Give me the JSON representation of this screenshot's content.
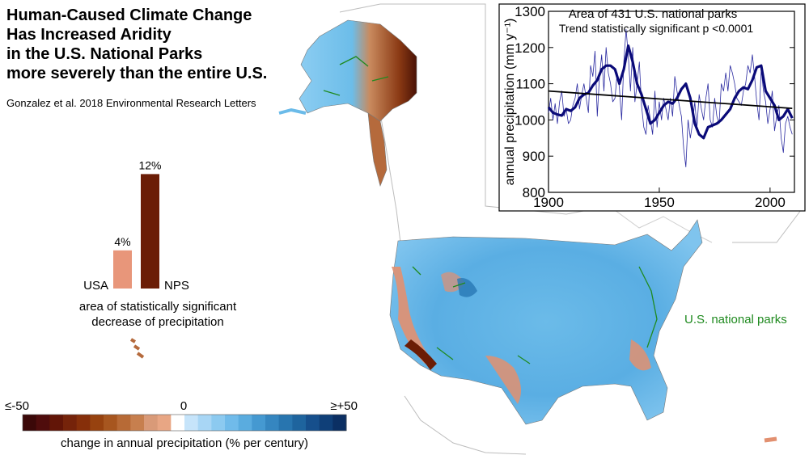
{
  "title_lines": [
    "Human-Caused Climate Change",
    "Has Increased Aridity",
    "in the U.S. National Parks",
    "more severely than the entire U.S."
  ],
  "citation": "Gonzalez et al. 2018 Environmental Research Letters",
  "map_legend_label": "U.S. national parks",
  "colors": {
    "nps_outline": "#1f8a1f",
    "usa_bar": "#e8967a",
    "nps_bar": "#6b1d06",
    "series_thick": "#0a0a78",
    "series_thin": "#2a2aa0",
    "trend": "#000000"
  },
  "bar_chart": {
    "type": "bar",
    "categories": [
      "USA",
      "NPS"
    ],
    "values": [
      4,
      12
    ],
    "value_labels": [
      "4%",
      "12%"
    ],
    "caption_lines": [
      "area of statistically significant",
      "decrease of precipitation"
    ]
  },
  "colorbar": {
    "min_label": "≤-50",
    "mid_label": "0",
    "max_label": "≥+50",
    "caption": "change in annual precipitation (% per century)",
    "colors": [
      "#3b0808",
      "#4f0c0c",
      "#621507",
      "#75230a",
      "#862f0a",
      "#97420f",
      "#a7561f",
      "#b76a36",
      "#c77f4e",
      "#d99a78",
      "#e8a684",
      "#ffffff",
      "#c6e4fa",
      "#a8d6f5",
      "#8ccaf0",
      "#70bbea",
      "#5aacdf",
      "#4599d1",
      "#3586c0",
      "#2875af",
      "#1e649e",
      "#164f8c",
      "#0f3f78",
      "#0b2f63"
    ]
  },
  "chart_data": {
    "type": "line",
    "title": "Area of 431 U.S. national parks",
    "subtitle": "Trend statistically significant p <0.0001",
    "xlabel": "",
    "ylabel": "annual precipitation (mm y⁻¹)",
    "xlim": [
      1900,
      2011
    ],
    "ylim": [
      800,
      1300
    ],
    "xticks": [
      1900,
      1950,
      2000
    ],
    "yticks": [
      800,
      900,
      1000,
      1100,
      1200,
      1300
    ],
    "series": [
      {
        "style": "thin",
        "x": [
          1900,
          1901,
          1902,
          1903,
          1904,
          1905,
          1906,
          1907,
          1908,
          1909,
          1910,
          1911,
          1912,
          1913,
          1914,
          1915,
          1916,
          1917,
          1918,
          1919,
          1920,
          1921,
          1922,
          1923,
          1924,
          1925,
          1926,
          1927,
          1928,
          1929,
          1930,
          1931,
          1932,
          1933,
          1934,
          1935,
          1936,
          1937,
          1938,
          1939,
          1940,
          1941,
          1942,
          1943,
          1944,
          1945,
          1946,
          1947,
          1948,
          1949,
          1950,
          1951,
          1952,
          1953,
          1954,
          1955,
          1956,
          1957,
          1958,
          1959,
          1960,
          1961,
          1962,
          1963,
          1964,
          1965,
          1966,
          1967,
          1968,
          1969,
          1970,
          1971,
          1972,
          1973,
          1974,
          1975,
          1976,
          1977,
          1978,
          1979,
          1980,
          1981,
          1982,
          1983,
          1984,
          1985,
          1986,
          1987,
          1988,
          1989,
          1990,
          1991,
          1992,
          1993,
          1994,
          1995,
          1996,
          1997,
          1998,
          1999,
          2000,
          2001,
          2002,
          2003,
          2004,
          2005,
          2006,
          2007,
          2008,
          2009,
          2010
        ],
        "y": [
          1020,
          1060,
          1000,
          1045,
          990,
          1050,
          1080,
          1010,
          1030,
          990,
          1000,
          1040,
          1060,
          1100,
          1030,
          1070,
          1100,
          1060,
          1020,
          1150,
          1120,
          1190,
          1010,
          1120,
          1180,
          1080,
          1200,
          1130,
          1100,
          1050,
          1060,
          1130,
          1090,
          1000,
          1160,
          1250,
          1180,
          1080,
          1200,
          1050,
          1100,
          1160,
          1040,
          980,
          960,
          1040,
          1000,
          960,
          1080,
          980,
          1050,
          1000,
          1060,
          1030,
          1000,
          1060,
          1010,
          1120,
          1080,
          1040,
          1010,
          920,
          870,
          1000,
          950,
          990,
          1050,
          980,
          1070,
          1030,
          1000,
          1060,
          1100,
          1000,
          980,
          1060,
          1010,
          990,
          1100,
          1080,
          1130,
          1080,
          1150,
          1130,
          1100,
          1060,
          1050,
          1040,
          1080,
          1100,
          1150,
          1130,
          1180,
          1120,
          1050,
          1000,
          1140,
          1080,
          1050,
          990,
          1030,
          1080,
          970,
          1010,
          1040,
          950,
          910,
          990,
          1010,
          980,
          960
        ]
      },
      {
        "style": "thick",
        "x": [
          1900,
          1902,
          1904,
          1906,
          1908,
          1910,
          1912,
          1914,
          1916,
          1918,
          1920,
          1922,
          1924,
          1926,
          1928,
          1930,
          1932,
          1934,
          1936,
          1938,
          1940,
          1942,
          1944,
          1946,
          1948,
          1950,
          1952,
          1954,
          1956,
          1958,
          1960,
          1962,
          1964,
          1966,
          1968,
          1970,
          1972,
          1974,
          1976,
          1978,
          1980,
          1982,
          1984,
          1986,
          1988,
          1990,
          1992,
          1994,
          1996,
          1998,
          2000,
          2002,
          2004,
          2006,
          2008,
          2010
        ],
        "y": [
          1035,
          1020,
          1015,
          1012,
          1030,
          1025,
          1035,
          1060,
          1070,
          1075,
          1095,
          1110,
          1140,
          1150,
          1150,
          1140,
          1100,
          1140,
          1205,
          1160,
          1100,
          1070,
          1030,
          990,
          1000,
          1020,
          1040,
          1050,
          1045,
          1060,
          1085,
          1100,
          1060,
          990,
          960,
          950,
          980,
          985,
          990,
          1000,
          1015,
          1030,
          1060,
          1080,
          1090,
          1085,
          1110,
          1145,
          1150,
          1080,
          1060,
          1040,
          1000,
          1010,
          1030,
          1005
        ]
      },
      {
        "style": "trend",
        "x": [
          1900,
          2010
        ],
        "y": [
          1080,
          1032
        ]
      }
    ]
  }
}
